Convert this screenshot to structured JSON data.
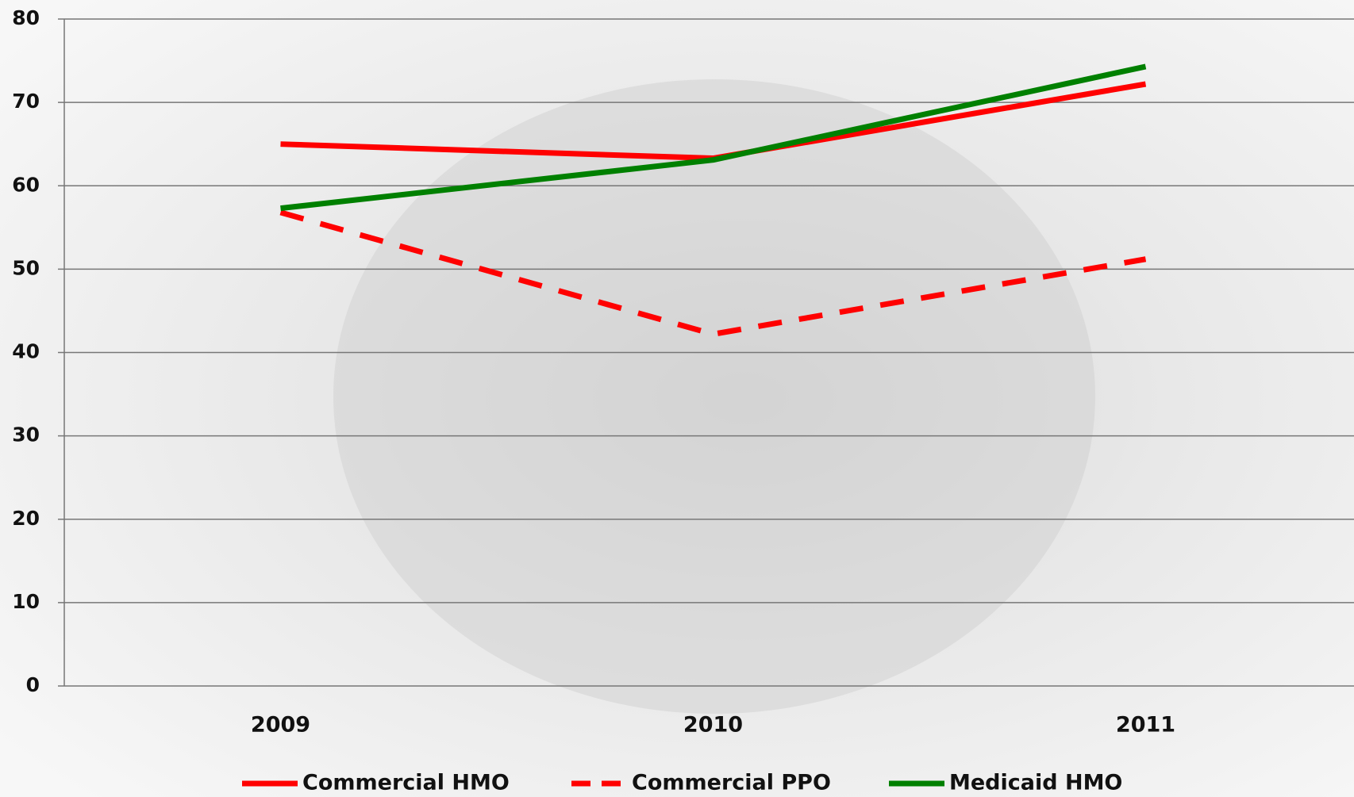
{
  "chart_data": {
    "type": "line",
    "categories": [
      "2009",
      "2010",
      "2011"
    ],
    "series": [
      {
        "name": "Commercial HMO",
        "color": "#ff0000",
        "dash": false,
        "values": [
          65,
          63.3,
          72.2
        ]
      },
      {
        "name": "Commercial PPO",
        "color": "#ff0000",
        "dash": true,
        "values": [
          56.8,
          42.2,
          51.2
        ]
      },
      {
        "name": "Medicaid HMO",
        "color": "#008000",
        "dash": false,
        "values": [
          57.3,
          63.1,
          74.3
        ]
      }
    ],
    "ylim": [
      0,
      80
    ],
    "yticks": [
      0,
      10,
      20,
      30,
      40,
      50,
      60,
      70,
      80
    ],
    "grid": true,
    "legend": "bottom"
  }
}
